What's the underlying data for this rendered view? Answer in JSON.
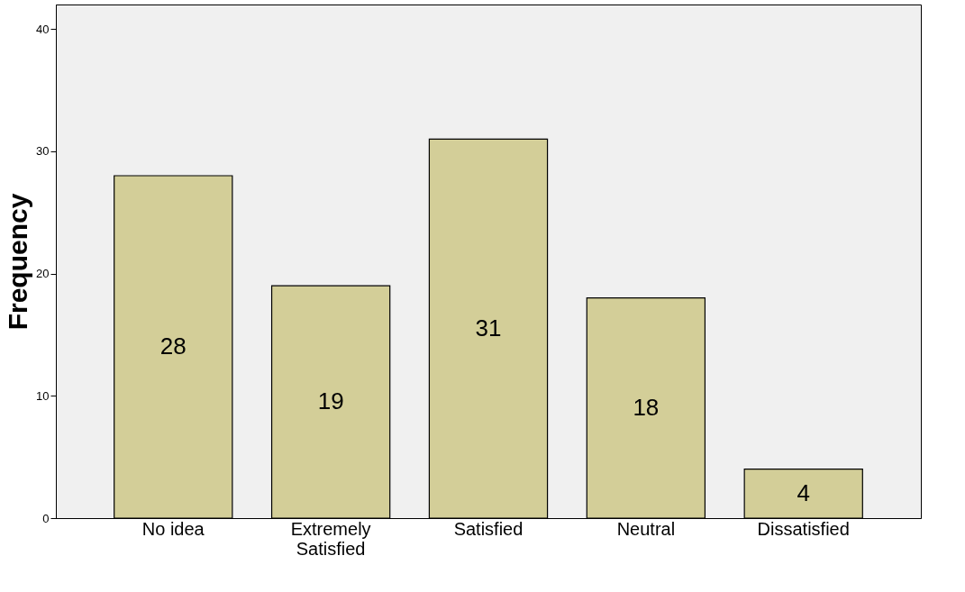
{
  "chart_data": {
    "type": "bar",
    "ylabel": "Frequency",
    "categories": [
      "No idea",
      "Extremely Satisfied",
      "Satisfied",
      "Neutral",
      "Dissatisfied"
    ],
    "values": [
      28,
      19,
      31,
      18,
      4
    ],
    "color": "#d3ce98",
    "ylim": [
      0,
      42
    ],
    "yticks": [
      0,
      10,
      20,
      30,
      40
    ],
    "grid": false,
    "data_labels": true
  }
}
